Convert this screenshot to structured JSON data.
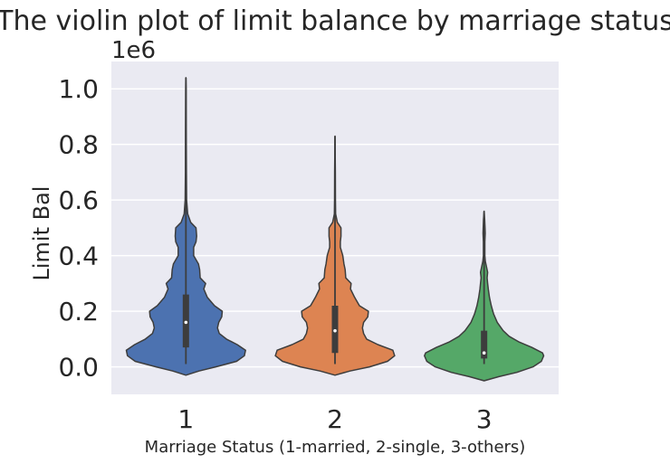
{
  "chart_data": {
    "type": "violin",
    "title": "The violin plot of limit balance by marriage status",
    "xlabel": "Marriage Status (1-married, 2-single, 3-others)",
    "ylabel": "Limit Bal",
    "y_offset_text": "1e6",
    "scale_note": "y values in units of 1e6",
    "ylim": [
      -0.1,
      1.09
    ],
    "yticks": [
      0.0,
      0.2,
      0.4,
      0.6,
      0.8,
      1.0
    ],
    "ytick_labels": [
      "0.0",
      "0.2",
      "0.4",
      "0.6",
      "0.8",
      "1.0"
    ],
    "categories": [
      "1",
      "2",
      "3"
    ],
    "grid": true,
    "background": "#eaeaf2",
    "series": [
      {
        "category": "1",
        "color": "#4c72b0",
        "min": 0.01,
        "q1": 0.07,
        "median": 0.16,
        "q3": 0.26,
        "whisker_high": 0.55,
        "max": 1.04,
        "kde_ymin": -0.03,
        "kde_ymax": 1.04,
        "profile": [
          [
            -0.03,
            0.0
          ],
          [
            -0.015,
            0.22
          ],
          [
            0.0,
            0.5
          ],
          [
            0.02,
            0.85
          ],
          [
            0.04,
            0.98
          ],
          [
            0.06,
            1.0
          ],
          [
            0.08,
            0.86
          ],
          [
            0.1,
            0.68
          ],
          [
            0.12,
            0.56
          ],
          [
            0.14,
            0.53
          ],
          [
            0.16,
            0.55
          ],
          [
            0.18,
            0.6
          ],
          [
            0.2,
            0.61
          ],
          [
            0.22,
            0.48
          ],
          [
            0.25,
            0.36
          ],
          [
            0.28,
            0.3
          ],
          [
            0.3,
            0.33
          ],
          [
            0.32,
            0.24
          ],
          [
            0.35,
            0.23
          ],
          [
            0.37,
            0.21
          ],
          [
            0.4,
            0.13
          ],
          [
            0.43,
            0.13
          ],
          [
            0.45,
            0.17
          ],
          [
            0.47,
            0.18
          ],
          [
            0.5,
            0.17
          ],
          [
            0.52,
            0.08
          ],
          [
            0.55,
            0.03
          ],
          [
            0.6,
            0.012
          ],
          [
            0.7,
            0.008
          ],
          [
            0.85,
            0.006
          ],
          [
            1.0,
            0.004
          ],
          [
            1.04,
            0.0
          ]
        ]
      },
      {
        "category": "2",
        "color": "#dd8452",
        "min": 0.01,
        "q1": 0.05,
        "median": 0.13,
        "q3": 0.22,
        "whisker_high": 0.48,
        "max": 0.83,
        "kde_ymin": -0.03,
        "kde_ymax": 0.83,
        "profile": [
          [
            -0.03,
            0.0
          ],
          [
            -0.015,
            0.25
          ],
          [
            0.0,
            0.58
          ],
          [
            0.02,
            0.88
          ],
          [
            0.04,
            1.0
          ],
          [
            0.06,
            0.97
          ],
          [
            0.08,
            0.72
          ],
          [
            0.1,
            0.53
          ],
          [
            0.12,
            0.48
          ],
          [
            0.14,
            0.46
          ],
          [
            0.16,
            0.48
          ],
          [
            0.18,
            0.55
          ],
          [
            0.2,
            0.56
          ],
          [
            0.22,
            0.41
          ],
          [
            0.25,
            0.33
          ],
          [
            0.28,
            0.26
          ],
          [
            0.3,
            0.27
          ],
          [
            0.32,
            0.18
          ],
          [
            0.35,
            0.17
          ],
          [
            0.37,
            0.15
          ],
          [
            0.4,
            0.13
          ],
          [
            0.43,
            0.09
          ],
          [
            0.45,
            0.09
          ],
          [
            0.47,
            0.1
          ],
          [
            0.5,
            0.1
          ],
          [
            0.52,
            0.04
          ],
          [
            0.55,
            0.01
          ],
          [
            0.6,
            0.008
          ],
          [
            0.7,
            0.006
          ],
          [
            0.83,
            0.0
          ]
        ]
      },
      {
        "category": "3",
        "color": "#55a868",
        "min": 0.01,
        "q1": 0.03,
        "median": 0.05,
        "q3": 0.13,
        "whisker_high": 0.28,
        "max": 0.56,
        "kde_ymin": -0.05,
        "kde_ymax": 0.56,
        "profile": [
          [
            -0.05,
            0.0
          ],
          [
            -0.035,
            0.25
          ],
          [
            -0.02,
            0.55
          ],
          [
            0.0,
            0.82
          ],
          [
            0.02,
            0.96
          ],
          [
            0.04,
            1.0
          ],
          [
            0.05,
            0.98
          ],
          [
            0.07,
            0.8
          ],
          [
            0.09,
            0.58
          ],
          [
            0.11,
            0.42
          ],
          [
            0.13,
            0.32
          ],
          [
            0.16,
            0.22
          ],
          [
            0.19,
            0.16
          ],
          [
            0.22,
            0.12
          ],
          [
            0.25,
            0.09
          ],
          [
            0.28,
            0.07
          ],
          [
            0.3,
            0.06
          ],
          [
            0.32,
            0.05
          ],
          [
            0.34,
            0.06
          ],
          [
            0.36,
            0.04
          ],
          [
            0.38,
            0.02
          ],
          [
            0.4,
            0.012
          ],
          [
            0.45,
            0.012
          ],
          [
            0.48,
            0.018
          ],
          [
            0.5,
            0.015
          ],
          [
            0.53,
            0.01
          ],
          [
            0.56,
            0.0
          ]
        ]
      }
    ]
  }
}
